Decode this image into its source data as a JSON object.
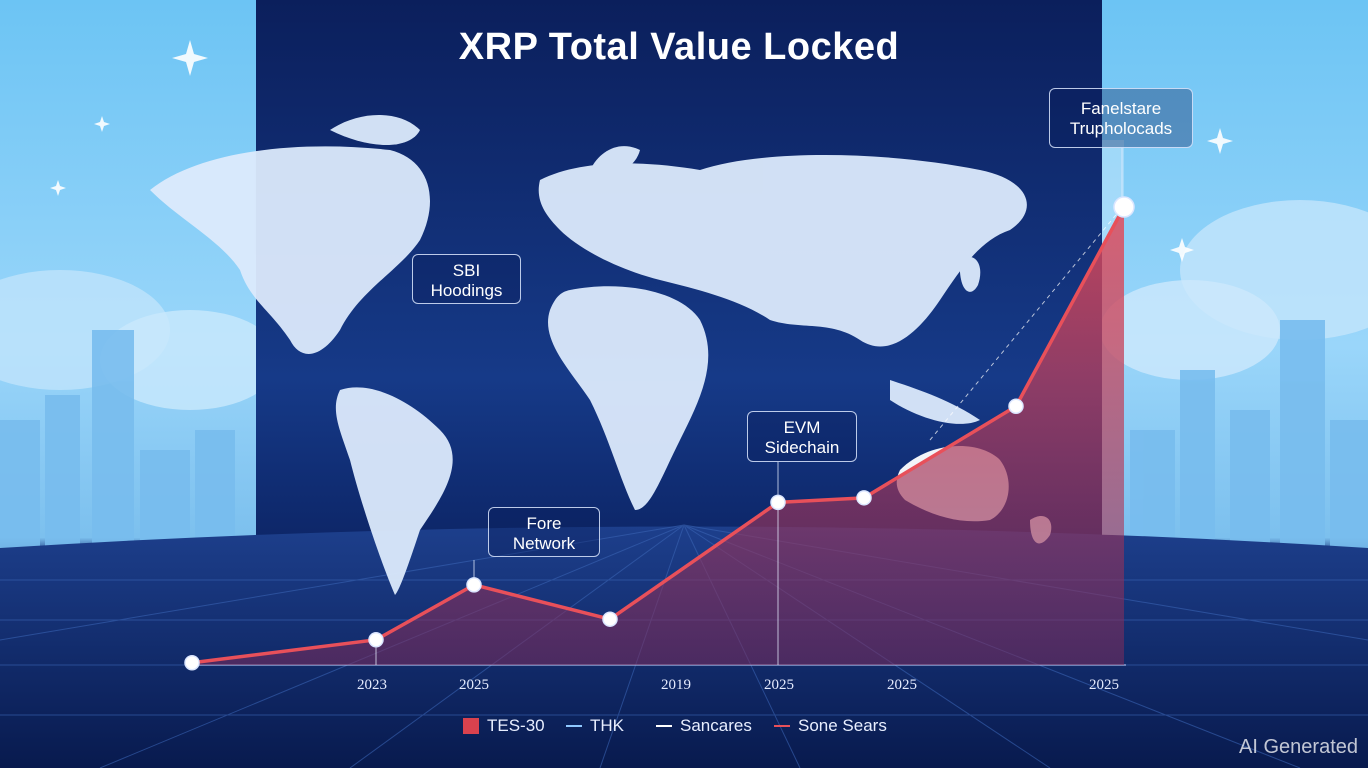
{
  "chart_data": {
    "type": "line",
    "title": "XRP Total Value Locked",
    "x_tick_labels": [
      "2023",
      "2025",
      "2019",
      "2025",
      "2025",
      "2025"
    ],
    "series": [
      {
        "name": "",
        "values": [
          0.05,
          0.55,
          1.75,
          1.0,
          3.55,
          3.65,
          5.65,
          10.0
        ]
      }
    ],
    "annotations": [
      {
        "lines": [
          "SBI",
          "Hoodings"
        ]
      },
      {
        "lines": [
          "Fore",
          "Network"
        ]
      },
      {
        "lines": [
          "EVM",
          "Sidechain"
        ]
      },
      {
        "lines": [
          "Fanelstare",
          "Trupholocads"
        ]
      }
    ],
    "legend": [
      {
        "label": "TES-30",
        "style": "box",
        "color": "#d9424e"
      },
      {
        "label": "THK",
        "style": "line",
        "color": "#8fc8ff"
      },
      {
        "label": "Sancares",
        "style": "line",
        "color": "#ffffff"
      },
      {
        "label": "Sone Sears",
        "style": "line",
        "color": "#e8505a"
      }
    ],
    "line_color": "#e8505a",
    "fill_color": "#c43a52",
    "grid": false,
    "legend_position": "bottom"
  },
  "watermark": "AI Generated"
}
